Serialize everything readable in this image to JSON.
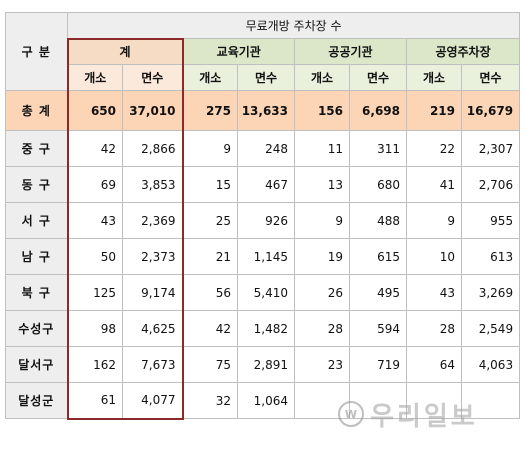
{
  "header": {
    "gubun": "구  분",
    "group_title": "무료개방 주차장 수",
    "groups": [
      "계",
      "교육기관",
      "공공기관",
      "공영주차장"
    ],
    "sub_labels": [
      "개소",
      "면수"
    ]
  },
  "total": {
    "label": "총  계",
    "values": [
      "650",
      "37,010",
      "275",
      "13,633",
      "156",
      "6,698",
      "219",
      "16,679"
    ]
  },
  "rows": [
    {
      "label": "중  구",
      "values": [
        "42",
        "2,866",
        "9",
        "248",
        "11",
        "311",
        "22",
        "2,307"
      ]
    },
    {
      "label": "동  구",
      "values": [
        "69",
        "3,853",
        "15",
        "467",
        "13",
        "680",
        "41",
        "2,706"
      ]
    },
    {
      "label": "서  구",
      "values": [
        "43",
        "2,369",
        "25",
        "926",
        "9",
        "488",
        "9",
        "955"
      ]
    },
    {
      "label": "남  구",
      "values": [
        "50",
        "2,373",
        "21",
        "1,145",
        "19",
        "615",
        "10",
        "613"
      ]
    },
    {
      "label": "북  구",
      "values": [
        "125",
        "9,174",
        "56",
        "5,410",
        "26",
        "495",
        "43",
        "3,269"
      ]
    },
    {
      "label": "수성구",
      "values": [
        "98",
        "4,625",
        "42",
        "1,482",
        "28",
        "594",
        "28",
        "2,549"
      ]
    },
    {
      "label": "달서구",
      "values": [
        "162",
        "7,673",
        "75",
        "2,891",
        "23",
        "719",
        "64",
        "4,063"
      ]
    },
    {
      "label": "달성군",
      "values": [
        "61",
        "4,077",
        "32",
        "1,064",
        "",
        "",
        "",
        ""
      ]
    }
  ],
  "watermark": {
    "text": "우리일보",
    "icon": "logo-circle-icon"
  }
}
